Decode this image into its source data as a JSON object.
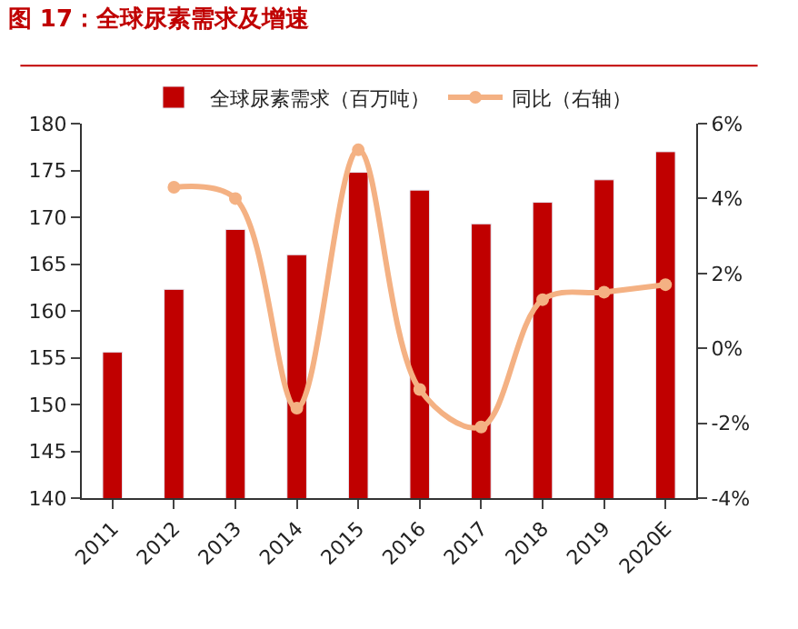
{
  "chart_data": {
    "type": "bar",
    "title": "图 17：全球尿素需求及增速",
    "categories": [
      "2011",
      "2012",
      "2013",
      "2014",
      "2015",
      "2016",
      "2017",
      "2018",
      "2019",
      "2020E"
    ],
    "series": [
      {
        "name": "全球尿素需求（百万吨）",
        "color": "#c00000",
        "values": [
          155.6,
          162.3,
          168.7,
          166.0,
          174.8,
          172.9,
          169.3,
          171.6,
          174.0,
          177.0
        ]
      },
      {
        "name": "同比（右轴）",
        "type": "line",
        "axis": "y2",
        "color": "#f4b183",
        "values": [
          null,
          4.3,
          4.0,
          -1.6,
          5.3,
          -1.1,
          -2.1,
          1.3,
          1.5,
          1.7
        ]
      }
    ],
    "ylim": [
      140,
      180
    ],
    "yticks": [
      140,
      145,
      150,
      155,
      160,
      165,
      170,
      175,
      180
    ],
    "y2lim": [
      -4,
      6
    ],
    "y2ticks": [
      {
        "value": -4,
        "label": "-4%"
      },
      {
        "value": -2,
        "label": "-2%"
      },
      {
        "value": 0,
        "label": "0%"
      },
      {
        "value": 2,
        "label": "2%"
      },
      {
        "value": 4,
        "label": "4%"
      },
      {
        "value": 6,
        "label": "6%"
      }
    ],
    "legend": "top",
    "marker": "circle"
  }
}
